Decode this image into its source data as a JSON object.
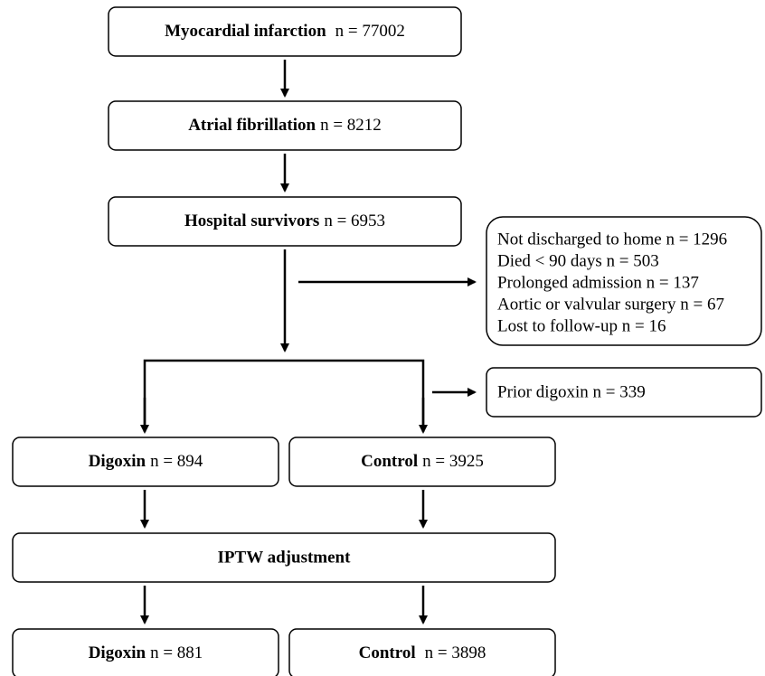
{
  "nodes": [
    {
      "label": "Myocardial infarction",
      "n": "n = 77002"
    },
    {
      "label": "Atrial fibrillation",
      "n": "n = 8212"
    },
    {
      "label": "Hospital survivors",
      "n": "n = 6953"
    },
    {
      "label": "Digoxin",
      "n": "n = 894"
    },
    {
      "label": "Control",
      "n": "n = 3925"
    },
    {
      "label": "IPTW adjustment"
    },
    {
      "label": "Digoxin",
      "n": "n = 881"
    },
    {
      "label": "Control",
      "n": "n = 3898"
    }
  ],
  "exclusions": [
    "Not discharged to home  n = 1296",
    "Died < 90 days  n = 503",
    "Prolonged admission n = 137",
    "Aortic or valvular surgery n = 67",
    "Lost to follow-up n = 16"
  ],
  "prior": "Prior digoxin n = 339"
}
